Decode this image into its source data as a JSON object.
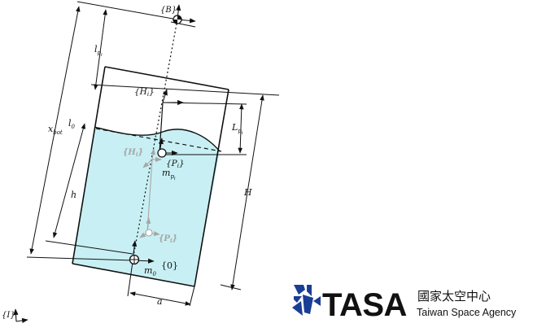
{
  "frames": {
    "body_frame": "{B}",
    "hinge_frame": "{H",
    "pendulum_frame": "{P",
    "subscript_i": "i",
    "tank_frame": "{0}",
    "inertial_frame": "{I}",
    "close_brace": "}"
  },
  "dimensions": {
    "x": "x",
    "x_sub": "bot",
    "l_p": "l",
    "l_p_sub": "p",
    "l_0": "l",
    "l_0_sub": "0",
    "L_p": "L",
    "L_p_sub": "p",
    "h": "h",
    "H": "H",
    "a": "a"
  },
  "masses": {
    "m_p": "m",
    "m_p_sub": "p",
    "m_0": "m",
    "m_0_sub": "0"
  },
  "logo": {
    "brand": "TASA",
    "chinese": "國家太空中心",
    "english": "Taiwan Space Agency"
  },
  "colors": {
    "liquid": "#c8f0f4",
    "ink": "#111111",
    "ghost": "#a6a6a6",
    "logo_blue": "#1a3e93"
  }
}
